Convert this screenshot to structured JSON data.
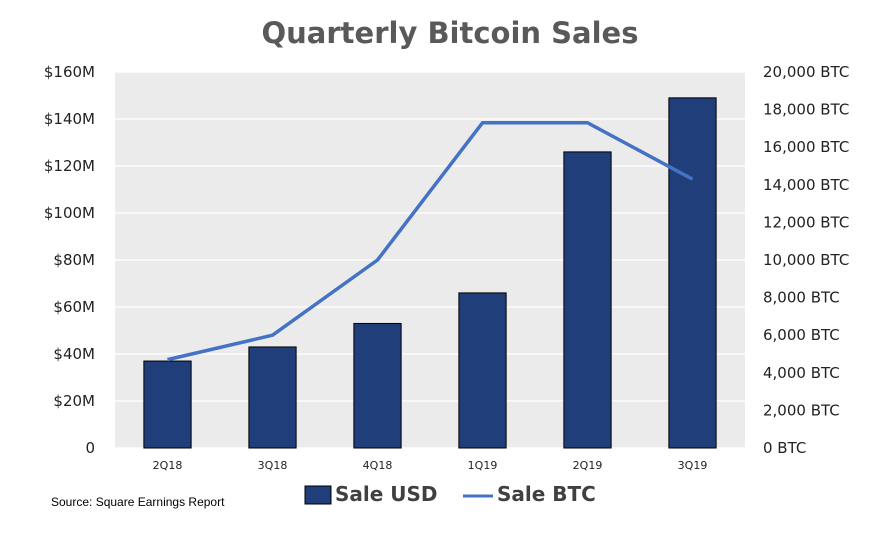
{
  "chart_data": {
    "type": "bar",
    "title": "Quarterly Bitcoin Sales",
    "categories": [
      "2Q18",
      "3Q18",
      "4Q18",
      "1Q19",
      "2Q19",
      "3Q19"
    ],
    "series": [
      {
        "name": "Sale USD",
        "type": "bar",
        "axis": "left",
        "color": "#203e7a",
        "values": [
          37,
          43,
          53,
          66,
          126,
          149
        ]
      },
      {
        "name": "Sale BTC",
        "type": "line",
        "axis": "right",
        "color": "#4472c4",
        "values": [
          4700,
          6000,
          10000,
          17300,
          17300,
          14300
        ]
      }
    ],
    "y_left": {
      "range": [
        0,
        160
      ],
      "ticks": [
        0,
        20,
        40,
        60,
        80,
        100,
        120,
        140,
        160
      ],
      "tick_labels": [
        "0",
        "$20M",
        "$40M",
        "$60M",
        "$80M",
        "$100M",
        "$120M",
        "$140M",
        "$160M"
      ]
    },
    "y_right": {
      "range": [
        0,
        20000
      ],
      "ticks": [
        0,
        2000,
        4000,
        6000,
        8000,
        10000,
        12000,
        14000,
        16000,
        18000,
        20000
      ],
      "tick_labels": [
        "0 BTC",
        "2,000 BTC",
        "4,000 BTC",
        "6,000 BTC",
        "8,000 BTC",
        "10,000 BTC",
        "12,000 BTC",
        "14,000 BTC",
        "16,000 BTC",
        "18,000 BTC",
        "20,000 BTC"
      ]
    },
    "grid": true,
    "legend_position": "bottom-center",
    "plot_background": "#ebebeb"
  },
  "source": "Source: Square Earnings Report"
}
